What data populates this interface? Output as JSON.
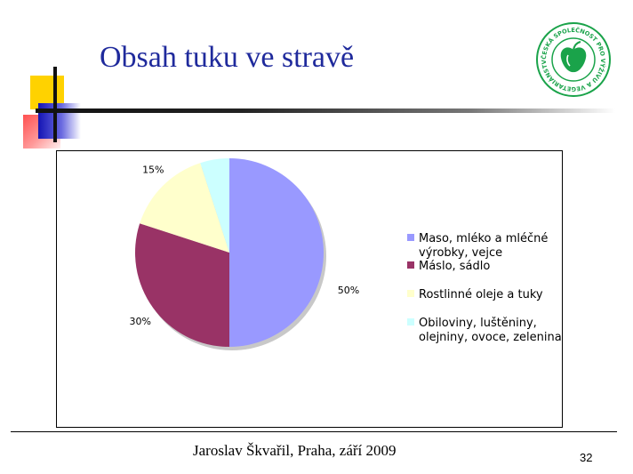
{
  "slide": {
    "title": "Obsah tuku ve stravě",
    "footer": "Jaroslav Škvařil, Praha, září  2009",
    "page_number": "32"
  },
  "logo": {
    "text": "ČESKÁ SPOLEČNOST PRO VÝŽIVU A VEGETARIÁNSTVÍ",
    "color": "#1aa34a",
    "icon": "apple-logo-icon"
  },
  "colors": {
    "title": "#1f2a9c",
    "deco_yellow": "#ffd200",
    "deco_blue": "#1414b4",
    "deco_red": "#ff5050"
  },
  "chart_data": {
    "type": "pie",
    "title": "",
    "legend_position": "right",
    "slices": [
      {
        "label": "Maso, mléko a mléčné výrobky, vejce",
        "legend_lines": [
          "Maso, mléko a mléčné",
          "výrobky, vejce"
        ],
        "value": 50,
        "display": "50%",
        "color": "#9999ff"
      },
      {
        "label": "Máslo, sádlo",
        "legend_lines": [
          "Máslo, sádlo"
        ],
        "value": 30,
        "display": "30%",
        "color": "#993366"
      },
      {
        "label": "Rostlinné oleje a tuky",
        "legend_lines": [
          "Rostlinné oleje a tuky"
        ],
        "value": 15,
        "display": "15%",
        "color": "#ffffcc"
      },
      {
        "label": "Obiloviny, luštěniny, olejniny, ovoce, zelenina",
        "legend_lines": [
          "Obiloviny, luštěniny,",
          "olejniny, ovoce, zelenina"
        ],
        "value": 5,
        "display": "5%",
        "color": "#ccffff"
      }
    ]
  }
}
